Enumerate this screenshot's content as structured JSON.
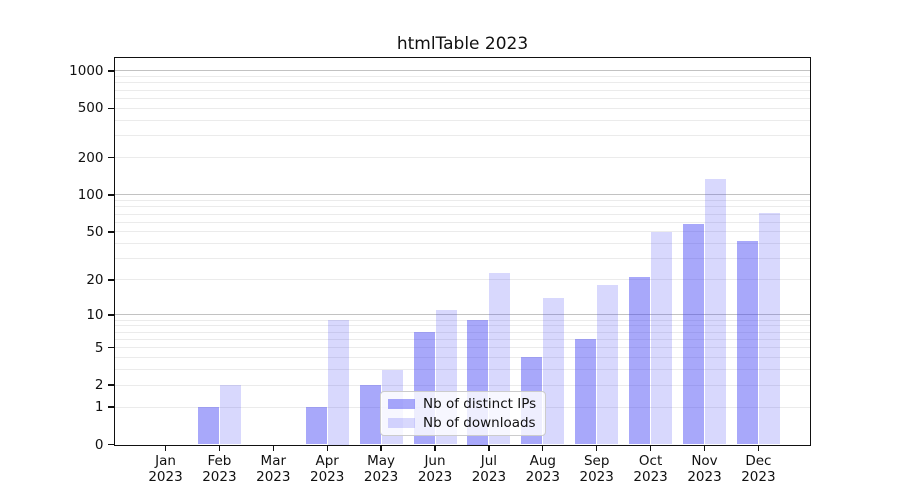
{
  "chart_data": {
    "type": "bar",
    "title": "htmlTable 2023",
    "categories": [
      "Jan",
      "Feb",
      "Mar",
      "Apr",
      "May",
      "Jun",
      "Jul",
      "Aug",
      "Sep",
      "Oct",
      "Nov",
      "Dec"
    ],
    "category_year": "2023",
    "series": [
      {
        "name": "Nb of distinct IPs",
        "color": "rgba(62,62,244,0.45)",
        "values": [
          0,
          1,
          0,
          1,
          2,
          7,
          9,
          4,
          6,
          21,
          58,
          42
        ]
      },
      {
        "name": "Nb of downloads",
        "color": "rgba(62,62,244,0.2)",
        "values": [
          0,
          2,
          0,
          9,
          3,
          11,
          23,
          14,
          18,
          50,
          135,
          72
        ]
      }
    ],
    "y_axis": {
      "scale": "log10(1+v)",
      "ticks": [
        0,
        1,
        2,
        5,
        10,
        20,
        50,
        100,
        200,
        500,
        1000
      ],
      "minor_gridline_values": [
        1,
        2,
        3,
        4,
        5,
        6,
        7,
        8,
        9,
        20,
        30,
        40,
        50,
        60,
        70,
        80,
        90,
        200,
        300,
        400,
        500,
        600,
        700,
        800,
        900
      ],
      "major_gridline_values": [
        10,
        100,
        1000
      ],
      "range_top": 1230
    },
    "x_axis": {
      "label_lines": 2
    },
    "legend": {
      "position": "lower center",
      "entries": [
        "Nb of distinct IPs",
        "Nb of downloads"
      ]
    },
    "grid": true,
    "colors": {
      "bar_base": "#3e3ef4",
      "grid_major": "#c2c2c2",
      "grid_minor": "#ebebeb",
      "frame": "#111111"
    }
  }
}
